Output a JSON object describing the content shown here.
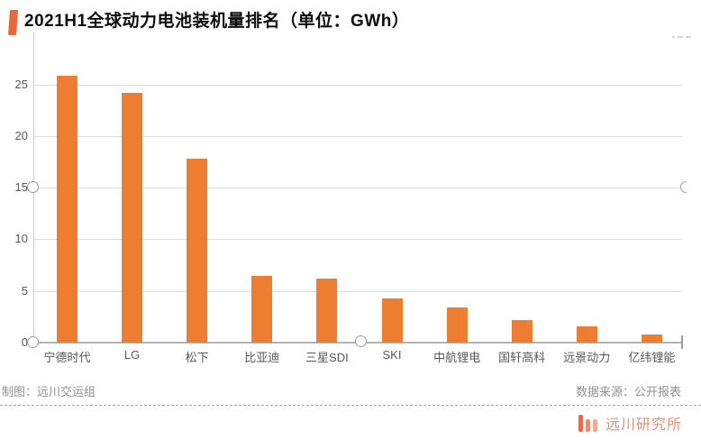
{
  "header": {
    "title": "2021H1全球动力电池装机量排名（单位：GWh）",
    "marker_color": "#e8683c"
  },
  "chart_data": {
    "type": "bar",
    "title": "2021H1全球动力电池装机量排名（单位：GWh）",
    "categories": [
      "宁德时代",
      "LG",
      "松下",
      "比亚迪",
      "三星SDI",
      "SKI",
      "中航锂电",
      "国轩高科",
      "远景动力",
      "亿纬锂能"
    ],
    "values": [
      25.8,
      24.2,
      17.8,
      6.5,
      6.2,
      4.3,
      3.4,
      2.2,
      1.6,
      0.8
    ],
    "unit": "GWh",
    "xlabel": "",
    "ylabel": "",
    "yticks": [
      0,
      5,
      10,
      15,
      20,
      25
    ],
    "ylim": [
      0,
      30
    ],
    "grid": true,
    "legend_position": "none",
    "bar_color": "#ed7d31"
  },
  "footer": {
    "credit": "制图：远川交运组",
    "source": "数据来源：公开报表",
    "brand": "远川研究所"
  },
  "colors": {
    "accent_orange": "#ed7d31",
    "brand_salmon": "#d9947f",
    "axis_gray": "#b3b3b3",
    "text_gray": "#595959"
  }
}
